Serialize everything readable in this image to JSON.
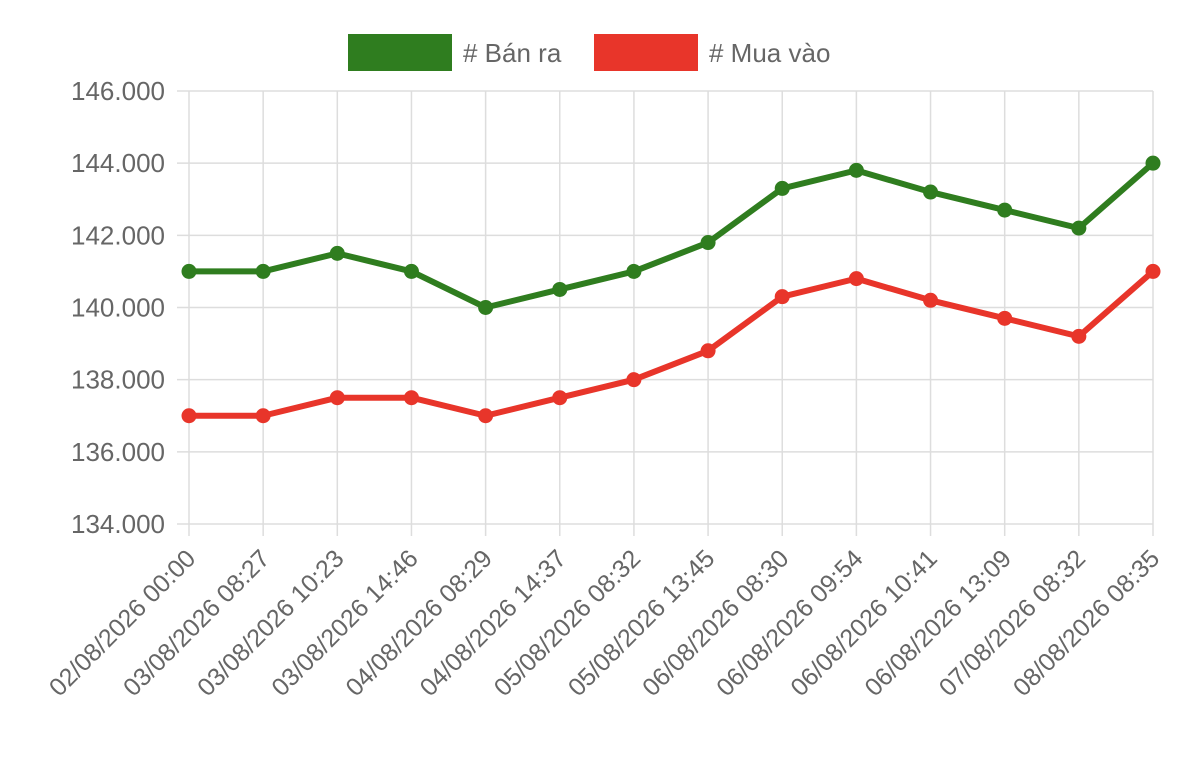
{
  "chart_data": {
    "type": "line",
    "categories": [
      "02/08/2026 00:00",
      "03/08/2026 08:27",
      "03/08/2026 10:23",
      "03/08/2026 14:46",
      "04/08/2026 08:29",
      "04/08/2026 14:37",
      "05/08/2026 08:32",
      "05/08/2026 13:45",
      "06/08/2026 08:30",
      "06/08/2026 09:54",
      "06/08/2026 10:41",
      "06/08/2026 13:09",
      "07/08/2026 08:32",
      "08/08/2026 08:35"
    ],
    "series": [
      {
        "name": "# Bán ra",
        "color": "#2f7d1f",
        "values": [
          141000,
          141000,
          141500,
          141000,
          140000,
          140500,
          141000,
          141800,
          143300,
          143800,
          143200,
          142700,
          142200,
          144000
        ]
      },
      {
        "name": "# Mua vào",
        "color": "#e8352a",
        "values": [
          137000,
          137000,
          137500,
          137500,
          137000,
          137500,
          138000,
          138800,
          140300,
          140800,
          140200,
          139700,
          139200,
          141000
        ]
      }
    ],
    "ylim": [
      134000,
      146000
    ],
    "y_ticks": [
      {
        "value": 146000,
        "label": "146.000"
      },
      {
        "value": 144000,
        "label": "144.000"
      },
      {
        "value": 142000,
        "label": "142.000"
      },
      {
        "value": 140000,
        "label": "140.000"
      },
      {
        "value": 138000,
        "label": "138.000"
      },
      {
        "value": 136000,
        "label": "136.000"
      },
      {
        "value": 134000,
        "label": "134.000"
      }
    ],
    "grid": true,
    "legend_position": "top-center",
    "title": "",
    "xlabel": "",
    "ylabel": ""
  }
}
